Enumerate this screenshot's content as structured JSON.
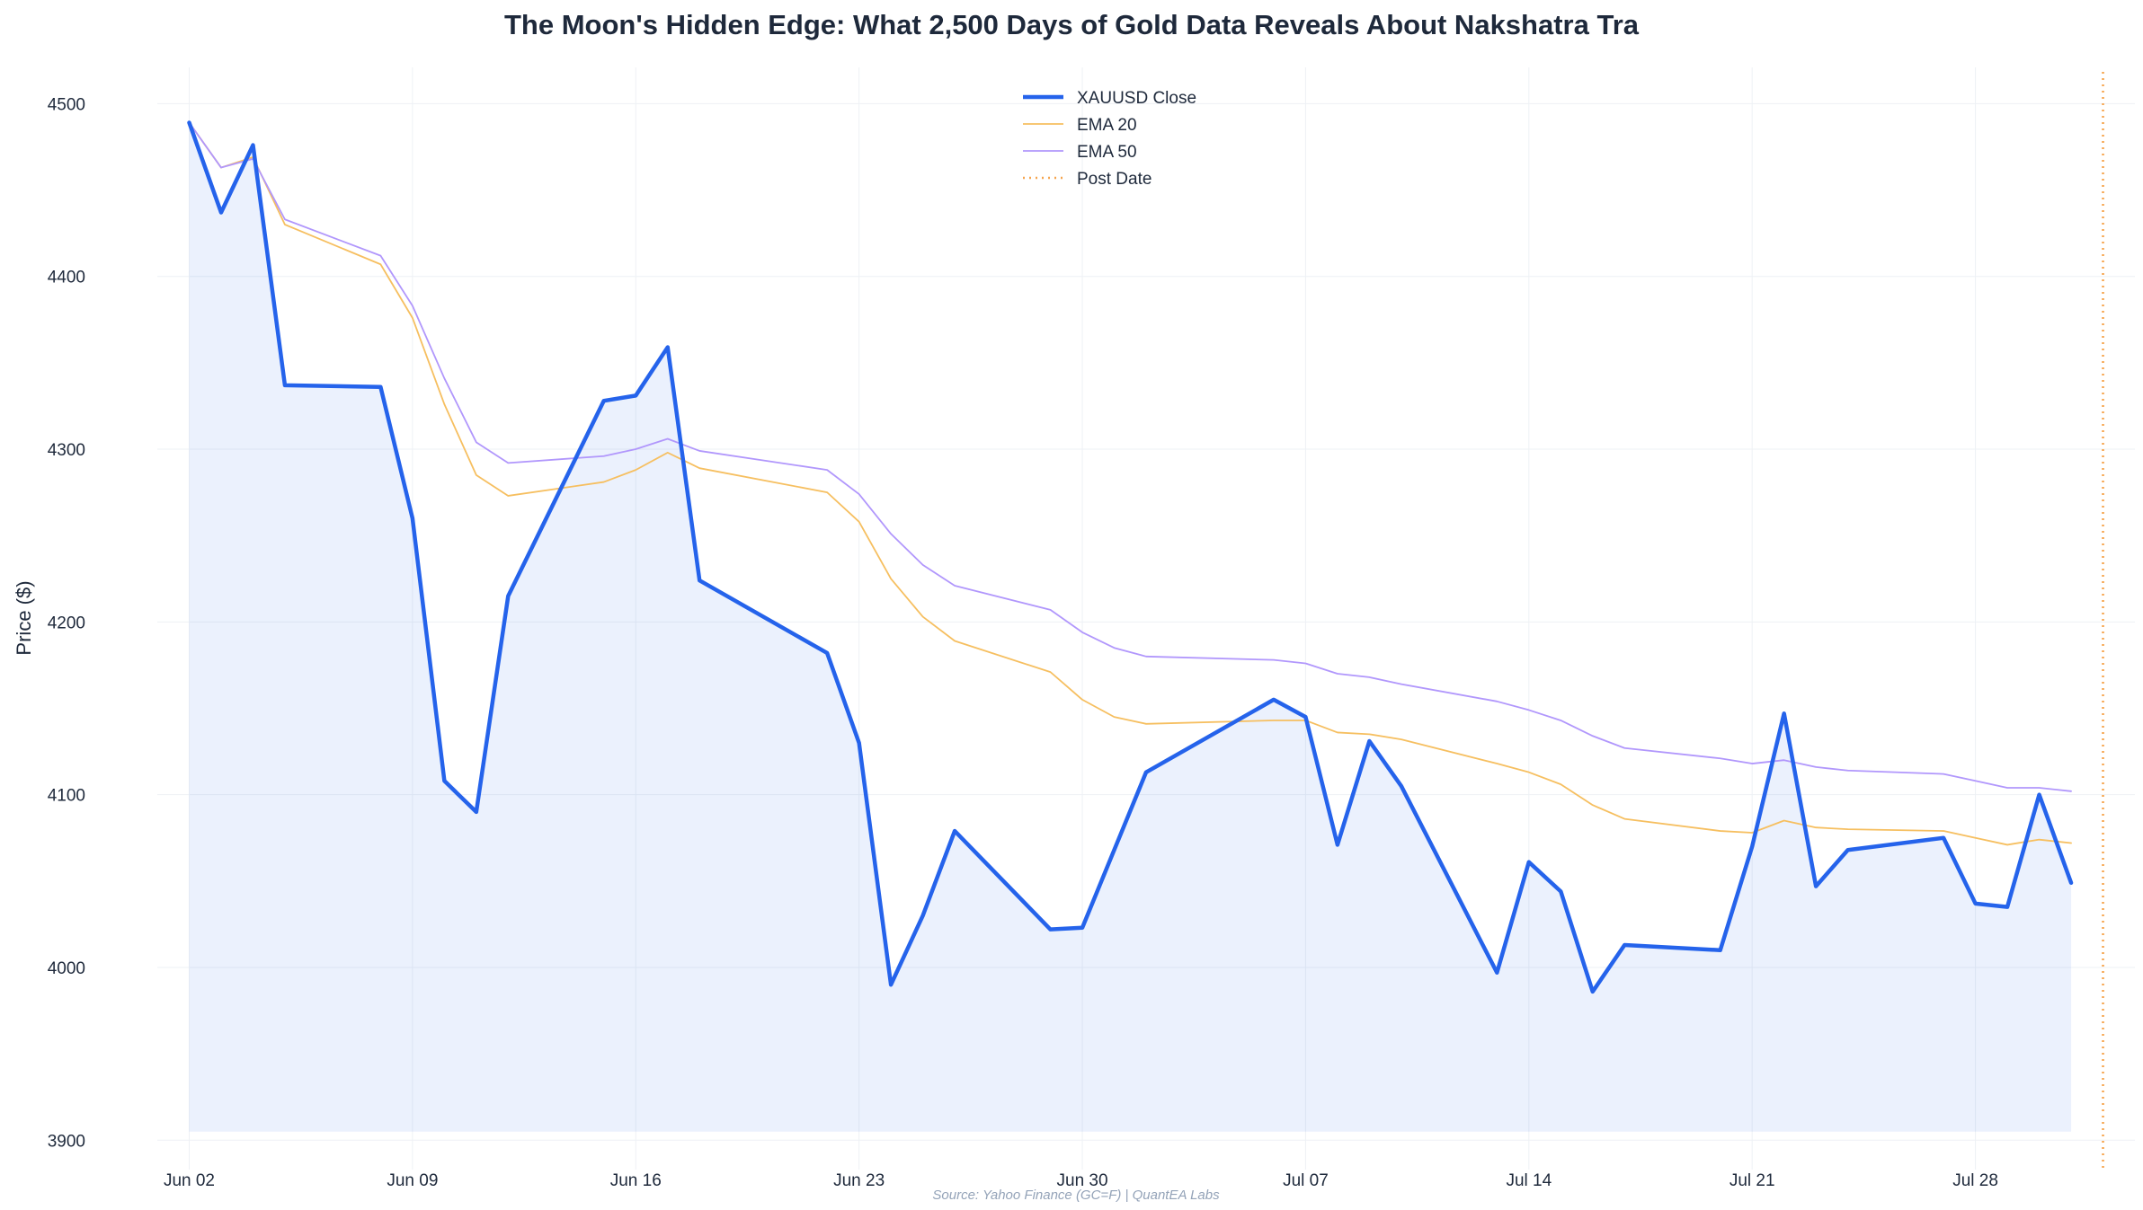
{
  "chart_data": {
    "type": "line",
    "title": "The Moon's Hidden Edge: What 2,500 Days of Gold Data Reveals About Nakshatra Tra",
    "xlabel": "",
    "ylabel": "Price ($)",
    "source": "Source: Yahoo Finance (GC=F) | QuantEA Labs",
    "ylim": [
      3883,
      4521
    ],
    "yticks": [
      3900,
      4000,
      4100,
      4200,
      4300,
      4400,
      4500
    ],
    "xlim": [
      "2025-06-01",
      "2025-08-02"
    ],
    "xticks": [
      {
        "date": "2025-06-02",
        "label": "Jun 02"
      },
      {
        "date": "2025-06-09",
        "label": "Jun 09"
      },
      {
        "date": "2025-06-16",
        "label": "Jun 16"
      },
      {
        "date": "2025-06-23",
        "label": "Jun 23"
      },
      {
        "date": "2025-06-30",
        "label": "Jun 30"
      },
      {
        "date": "2025-07-07",
        "label": "Jul 07"
      },
      {
        "date": "2025-07-14",
        "label": "Jul 14"
      },
      {
        "date": "2025-07-21",
        "label": "Jul 21"
      },
      {
        "date": "2025-07-28",
        "label": "Jul 28"
      }
    ],
    "grid": true,
    "legend_position": "top-center",
    "fill_baseline": 3905,
    "dates": [
      "2025-06-02",
      "2025-06-03",
      "2025-06-04",
      "2025-06-05",
      "2025-06-08",
      "2025-06-09",
      "2025-06-10",
      "2025-06-11",
      "2025-06-12",
      "2025-06-15",
      "2025-06-16",
      "2025-06-17",
      "2025-06-18",
      "2025-06-22",
      "2025-06-23",
      "2025-06-24",
      "2025-06-25",
      "2025-06-26",
      "2025-06-29",
      "2025-06-30",
      "2025-07-01",
      "2025-07-02",
      "2025-07-06",
      "2025-07-07",
      "2025-07-08",
      "2025-07-09",
      "2025-07-10",
      "2025-07-13",
      "2025-07-14",
      "2025-07-15",
      "2025-07-16",
      "2025-07-17",
      "2025-07-20",
      "2025-07-21",
      "2025-07-22",
      "2025-07-23",
      "2025-07-24",
      "2025-07-27",
      "2025-07-28",
      "2025-07-29",
      "2025-07-30",
      "2025-07-31"
    ],
    "series": [
      {
        "name": "XAUUSD Close",
        "color": "#2563eb",
        "style": "solid",
        "width": 4.5,
        "values": [
          4489,
          4437,
          4476,
          4337,
          4336,
          4260,
          4108,
          4090,
          4215,
          4328,
          4331,
          4359,
          4224,
          4182,
          4130,
          3990,
          4030,
          4079,
          4022,
          4023,
          4068,
          4113,
          4155,
          4145,
          4071,
          4131,
          4105,
          3997,
          4061,
          4044,
          3986,
          4013,
          4010,
          4070,
          4147,
          4047,
          4068,
          4075,
          4037,
          4035,
          4100,
          4049
        ]
      },
      {
        "name": "EMA 20",
        "color": "#f6bf60",
        "style": "solid",
        "width": 1.8,
        "values": [
          4489,
          4463,
          4469,
          4430,
          4407,
          4376,
          4326,
          4285,
          4273,
          4281,
          4288,
          4298,
          4289,
          4275,
          4258,
          4225,
          4203,
          4189,
          4171,
          4155,
          4145,
          4141,
          4143,
          4143,
          4136,
          4135,
          4132,
          4118,
          4113,
          4106,
          4094,
          4086,
          4079,
          4078,
          4085,
          4081,
          4080,
          4079,
          4075,
          4071,
          4074,
          4072
        ]
      },
      {
        "name": "EMA 50",
        "color": "#b197fc",
        "style": "solid",
        "width": 1.8,
        "values": [
          4489,
          4463,
          4468,
          4433,
          4412,
          4383,
          4341,
          4304,
          4292,
          4296,
          4300,
          4306,
          4299,
          4288,
          4274,
          4251,
          4233,
          4221,
          4207,
          4194,
          4185,
          4180,
          4178,
          4176,
          4170,
          4168,
          4164,
          4154,
          4149,
          4143,
          4134,
          4127,
          4121,
          4118,
          4120,
          4116,
          4114,
          4112,
          4108,
          4104,
          4104,
          4102
        ]
      }
    ],
    "post_date": {
      "name": "Post Date",
      "date": "2025-08-01",
      "color": "#f6a54e",
      "style": "dotted"
    }
  }
}
